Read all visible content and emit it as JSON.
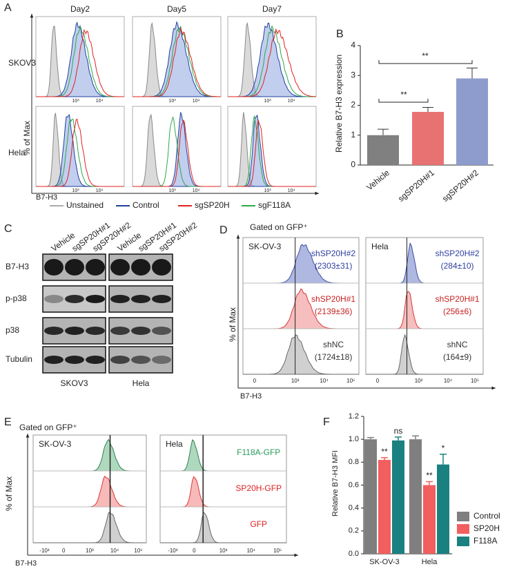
{
  "panel_a": {
    "label": "A",
    "columns": [
      "Day2",
      "Day5",
      "Day7"
    ],
    "rows": [
      "SKOV3",
      "Hela"
    ],
    "y_label": "% of Max",
    "x_label": "B7-H3",
    "x_ticks": [
      "10³",
      "10⁴"
    ],
    "legend": [
      "Unstained",
      "Control",
      "sgSP20H",
      "sgF118A"
    ]
  },
  "panel_c": {
    "label": "C",
    "lanes": [
      "Vehicle",
      "sgSP20H#1",
      "sgSP20H#2"
    ],
    "rows": [
      "B7-H3",
      "p-p38",
      "p38",
      "Tubulin"
    ],
    "groups": [
      "SKOV3",
      "Hela"
    ]
  },
  "panel_d": {
    "label": "D",
    "gate": "Gated on GFP⁺",
    "y_label": "% of Max",
    "x_label": "B7-H3",
    "x_ticks": [
      "0",
      "10³",
      "10⁴",
      "10⁵"
    ],
    "boxes": [
      {
        "title": "SK-OV-3",
        "rows": [
          [
            "shSP20H#2",
            "(2303±31)"
          ],
          [
            "shSP20H#1",
            "(2139±36)"
          ],
          [
            "shNC",
            "(1724±18)"
          ]
        ]
      },
      {
        "title": "Hela",
        "rows": [
          [
            "shSP20H#2",
            "(284±10)"
          ],
          [
            "shSP20H#1",
            "(256±6)"
          ],
          [
            "shNC",
            "(164±9)"
          ]
        ]
      }
    ]
  },
  "panel_e": {
    "label": "E",
    "gate": "Gated on GFP⁺",
    "y_label": "% of Max",
    "x_label": "B7-H3",
    "x_ticks": [
      "-10³",
      "0",
      "10³",
      "10⁴",
      "10⁵"
    ],
    "boxes": [
      "SK-OV-3",
      "Hela"
    ],
    "rows": [
      "F118A-GFP",
      "SP20H-GFP",
      "GFP"
    ]
  },
  "chart_data": [
    {
      "type": "bar",
      "panel": "B",
      "y_label": "Relative B7-H3 expression",
      "categories": [
        "Vehicle",
        "sgSP20H#1",
        "sgSP20H#2"
      ],
      "values": [
        1.0,
        1.78,
        2.9
      ],
      "errors": [
        0.2,
        0.15,
        0.35
      ],
      "colors": [
        "#808080",
        "#e87272",
        "#8e9ccd"
      ],
      "ylim": [
        0,
        4
      ],
      "yticks": [
        0,
        1,
        2,
        3,
        4
      ],
      "significance": [
        "**",
        "**"
      ]
    },
    {
      "type": "grouped-bar",
      "panel": "F",
      "y_label": "Relative B7-H3 MFI",
      "categories": [
        "SK-OV-3",
        "Hela"
      ],
      "series": [
        {
          "name": "Control",
          "color": "#7f7f7f",
          "values": [
            1.0,
            1.0
          ],
          "errors": [
            0.015,
            0.03
          ],
          "significance": [
            null,
            null
          ]
        },
        {
          "name": "SP20H",
          "color": "#f25f5f",
          "values": [
            0.82,
            0.6
          ],
          "errors": [
            0.02,
            0.03
          ],
          "significance": [
            "**",
            "**"
          ]
        },
        {
          "name": "F118A",
          "color": "#1b8080",
          "values": [
            0.99,
            0.78
          ],
          "errors": [
            0.03,
            0.09
          ],
          "significance": [
            "ns",
            "*"
          ]
        }
      ],
      "ylim": [
        0,
        1.2
      ],
      "yticks": [
        {
          "value": 0,
          "label": "0.0"
        },
        0.2,
        0.4,
        0.6,
        0.8,
        {
          "value": 1,
          "label": "1.0"
        },
        1.2
      ]
    }
  ]
}
